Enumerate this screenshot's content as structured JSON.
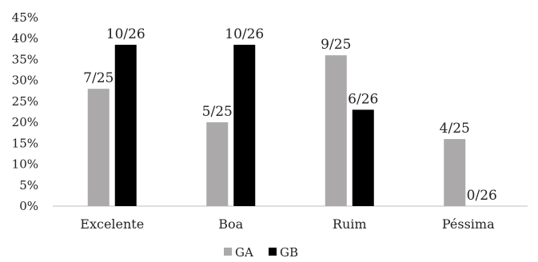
{
  "chart_data": {
    "type": "bar",
    "title": "",
    "xlabel": "",
    "ylabel": "",
    "categories": [
      "Excelente",
      "Boa",
      "Ruim",
      "Péssima"
    ],
    "series": [
      {
        "name": "GA",
        "color": "#ABA9A9",
        "values": [
          28,
          20,
          36,
          16
        ],
        "labels": [
          "7/25",
          "5/25",
          "9/25",
          "4/25"
        ]
      },
      {
        "name": "GB",
        "color": "#000000",
        "values": [
          38.5,
          38.5,
          23,
          0
        ],
        "labels": [
          "10/26",
          "10/26",
          "6/26",
          "0/26"
        ]
      }
    ],
    "ylim": [
      0,
      45
    ],
    "yticks": [
      0,
      5,
      10,
      15,
      20,
      25,
      30,
      35,
      40,
      45
    ],
    "ytick_labels": [
      "0%",
      "5%",
      "10%",
      "15%",
      "20%",
      "25%",
      "30%",
      "35%",
      "40%",
      "45%"
    ],
    "grid": false,
    "legend_position": "bottom-center"
  }
}
